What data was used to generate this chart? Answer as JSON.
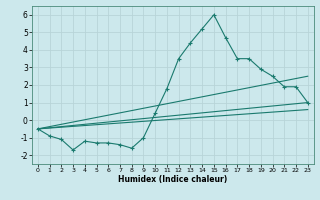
{
  "xlabel": "Humidex (Indice chaleur)",
  "bg_color": "#cce8ec",
  "grid_color": "#b8d4d8",
  "line_color": "#1a7a6e",
  "xlim": [
    -0.5,
    23.5
  ],
  "ylim": [
    -2.5,
    6.5
  ],
  "yticks": [
    -2,
    -1,
    0,
    1,
    2,
    3,
    4,
    5,
    6
  ],
  "xticks": [
    0,
    1,
    2,
    3,
    4,
    5,
    6,
    7,
    8,
    9,
    10,
    11,
    12,
    13,
    14,
    15,
    16,
    17,
    18,
    19,
    20,
    21,
    22,
    23
  ],
  "series1_x": [
    0,
    1,
    2,
    3,
    4,
    5,
    6,
    7,
    8,
    9,
    10,
    11,
    12,
    13,
    14,
    15,
    16,
    17,
    18,
    19,
    20,
    21,
    22,
    23
  ],
  "series1_y": [
    -0.5,
    -0.9,
    -1.1,
    -1.7,
    -1.2,
    -1.3,
    -1.3,
    -1.4,
    -1.6,
    -1.0,
    0.4,
    1.8,
    3.5,
    4.4,
    5.2,
    6.0,
    4.7,
    3.5,
    3.5,
    2.9,
    2.5,
    1.9,
    1.9,
    1.0
  ],
  "series2_x": [
    0,
    23
  ],
  "series2_y": [
    -0.5,
    2.5
  ],
  "series3_x": [
    0,
    23
  ],
  "series3_y": [
    -0.5,
    1.0
  ],
  "series4_x": [
    0,
    23
  ],
  "series4_y": [
    -0.5,
    0.6
  ]
}
